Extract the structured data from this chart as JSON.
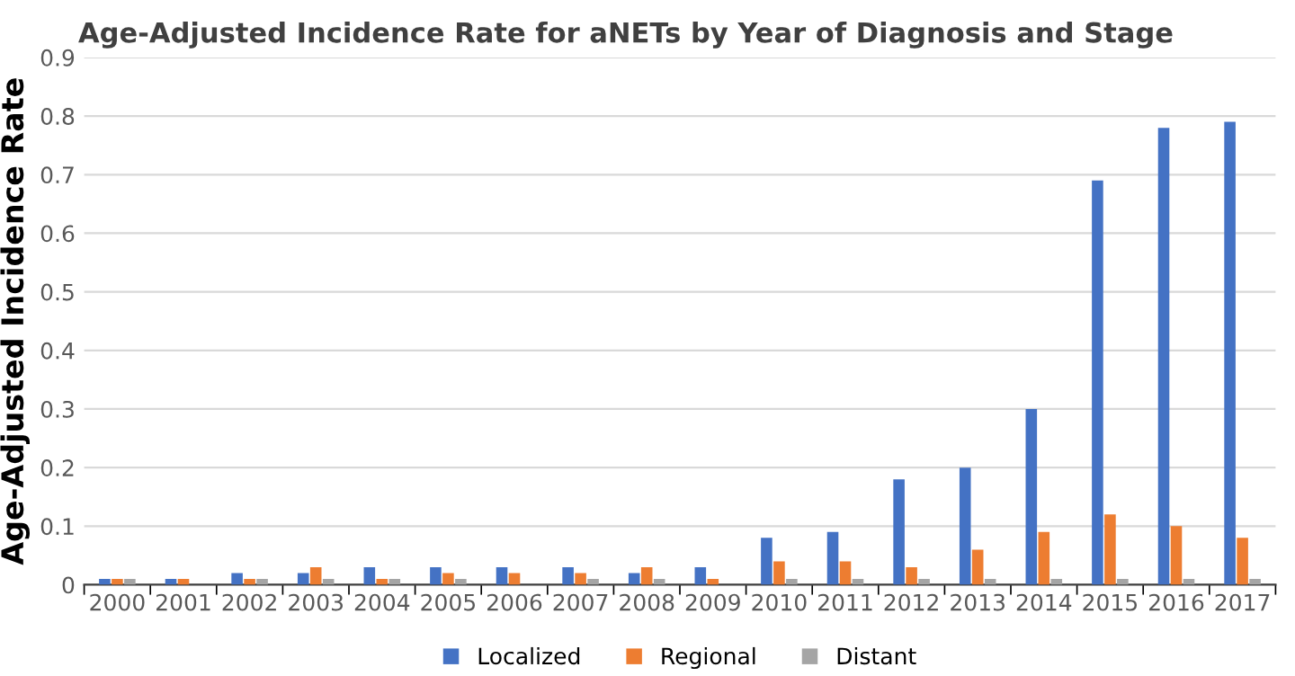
{
  "chart_data": {
    "type": "bar",
    "title": "Age-Adjusted Incidence Rate for aNETs by Year of Diagnosis and Stage",
    "ylabel": "Age-Adjusted Incidence Rate",
    "categories": [
      "2000",
      "2001",
      "2002",
      "2003",
      "2004",
      "2005",
      "2006",
      "2007",
      "2008",
      "2009",
      "2010",
      "2011",
      "2012",
      "2013",
      "2014",
      "2015",
      "2016",
      "2017"
    ],
    "series": [
      {
        "name": "Localized",
        "color": "#4472c4",
        "values": [
          0.01,
          0.01,
          0.02,
          0.02,
          0.03,
          0.03,
          0.03,
          0.03,
          0.02,
          0.03,
          0.08,
          0.09,
          0.18,
          0.2,
          0.3,
          0.69,
          0.78,
          0.79
        ]
      },
      {
        "name": "Regional",
        "color": "#ed7d31",
        "values": [
          0.01,
          0.01,
          0.01,
          0.03,
          0.01,
          0.02,
          0.02,
          0.02,
          0.03,
          0.01,
          0.04,
          0.04,
          0.03,
          0.06,
          0.09,
          0.12,
          0.1,
          0.08
        ]
      },
      {
        "name": "Distant",
        "color": "#a5a5a5",
        "values": [
          0.01,
          0,
          0.01,
          0.01,
          0.01,
          0.01,
          0,
          0.01,
          0.01,
          0,
          0.01,
          0.01,
          0.01,
          0.01,
          0.01,
          0.01,
          0.01,
          0.01
        ]
      }
    ],
    "ylim": [
      0,
      0.9
    ],
    "yticks": [
      0,
      0.1,
      0.2,
      0.3,
      0.4,
      0.5,
      0.6,
      0.7,
      0.8,
      0.9
    ],
    "grid": "y",
    "legend": "bottom"
  }
}
